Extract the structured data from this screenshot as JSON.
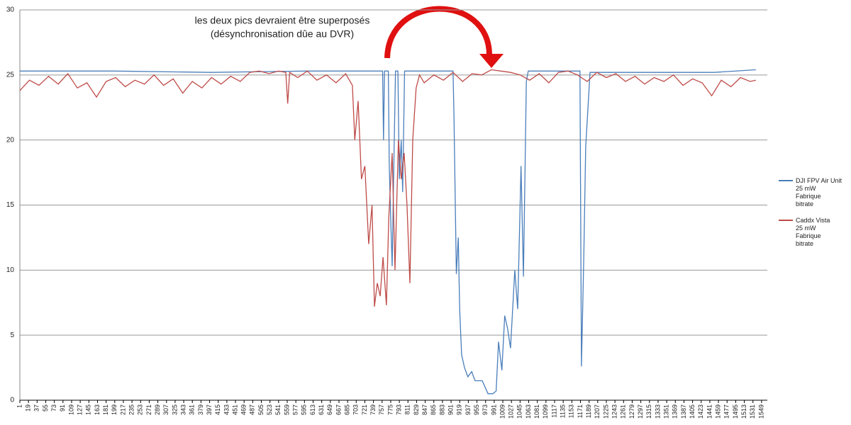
{
  "chart_data": {
    "type": "line",
    "annotation": [
      "les deux pics devraient être superposés",
      "(désynchronisation dûe au DVR)"
    ],
    "xlim": [
      1,
      1561
    ],
    "ylim": [
      0,
      30
    ],
    "yticks": [
      0,
      5,
      10,
      15,
      20,
      25,
      30
    ],
    "grid": true,
    "legend": "right",
    "xticks": [
      1,
      19,
      37,
      55,
      73,
      91,
      109,
      127,
      145,
      163,
      181,
      199,
      217,
      235,
      253,
      271,
      289,
      307,
      325,
      343,
      361,
      379,
      397,
      415,
      433,
      451,
      469,
      487,
      505,
      523,
      541,
      559,
      577,
      595,
      613,
      631,
      649,
      667,
      685,
      703,
      721,
      739,
      757,
      775,
      793,
      811,
      829,
      847,
      865,
      883,
      901,
      919,
      937,
      955,
      973,
      991,
      1009,
      1027,
      1045,
      1063,
      1081,
      1099,
      1117,
      1135,
      1153,
      1171,
      1189,
      1207,
      1225,
      1243,
      1261,
      1279,
      1297,
      1315,
      1333,
      1351,
      1369,
      1387,
      1405,
      1423,
      1441,
      1459,
      1477,
      1495,
      1513,
      1531,
      1549
    ],
    "series": [
      {
        "name": "DJI FPV Air Unit\n25 mW\n Fabrique\nbitrate",
        "color": "#4a7ebb",
        "x": [
          1,
          200,
          400,
          600,
          758,
          760,
          762,
          770,
          772,
          775,
          778,
          781,
          785,
          790,
          793,
          797,
          800,
          804,
          905,
          907,
          912,
          916,
          919,
          923,
          929,
          936,
          944,
          951,
          966,
          978,
          988,
          995,
          1000,
          1007,
          1013,
          1019,
          1025,
          1034,
          1040,
          1047,
          1052,
          1058,
          1062,
          1170,
          1173,
          1178,
          1182,
          1186,
          1191,
          1300,
          1450,
          1537
        ],
        "values": [
          25.3,
          25.3,
          25.2,
          25.3,
          25.3,
          20,
          25.3,
          25.3,
          18,
          14,
          10.3,
          17,
          25.3,
          25.3,
          17,
          20,
          16,
          25.3,
          25.3,
          22,
          9.7,
          12.5,
          7,
          3.5,
          2.5,
          1.8,
          2.2,
          1.5,
          1.5,
          0.5,
          0.5,
          0.7,
          4.5,
          2.3,
          6.5,
          5.5,
          4,
          10,
          7,
          18,
          9.5,
          24.5,
          25.3,
          25.3,
          2.6,
          11,
          19.5,
          22,
          25.2,
          25.2,
          25.2,
          25.4
        ]
      },
      {
        "name": "Caddx Vista\n25 mW\n Fabrique\nbitrate",
        "color": "#be4b48",
        "x": [
          1,
          21,
          41,
          61,
          81,
          101,
          121,
          141,
          161,
          181,
          201,
          221,
          241,
          261,
          281,
          301,
          321,
          341,
          361,
          381,
          401,
          421,
          441,
          461,
          481,
          501,
          521,
          541,
          556,
          560,
          564,
          581,
          601,
          621,
          641,
          661,
          681,
          695,
          700,
          707,
          714,
          721,
          729,
          736,
          741,
          747,
          753,
          759,
          766,
          771,
          778,
          784,
          791,
          797,
          803,
          809,
          815,
          821,
          828,
          835,
          845,
          865,
          885,
          905,
          925,
          945,
          965,
          985,
          1005,
          1025,
          1045,
          1065,
          1085,
          1105,
          1125,
          1145,
          1165,
          1185,
          1205,
          1225,
          1245,
          1265,
          1285,
          1305,
          1325,
          1345,
          1365,
          1385,
          1405,
          1425,
          1445,
          1465,
          1485,
          1505,
          1525,
          1537
        ],
        "values": [
          23.8,
          24.6,
          24.2,
          24.9,
          24.3,
          25.1,
          24.0,
          24.4,
          23.3,
          24.5,
          24.8,
          24.1,
          24.6,
          24.3,
          25.0,
          24.2,
          24.7,
          23.6,
          24.5,
          24.0,
          24.8,
          24.3,
          24.9,
          24.5,
          25.2,
          25.3,
          25.1,
          25.3,
          25.2,
          22.8,
          25.2,
          24.8,
          25.3,
          24.6,
          25.0,
          24.4,
          25.1,
          24.2,
          20,
          23,
          17,
          18,
          12,
          15,
          7.2,
          9,
          8,
          11,
          7.3,
          14,
          19,
          10,
          20,
          17,
          19,
          15,
          9,
          20,
          24,
          25,
          24.4,
          25.0,
          24.6,
          25.2,
          24.5,
          25.1,
          25.0,
          25.4,
          25.3,
          25.2,
          25.0,
          24.6,
          25.1,
          24.4,
          25.2,
          25.3,
          25.0,
          24.5,
          25.2,
          24.8,
          25.1,
          24.5,
          24.9,
          24.3,
          24.8,
          24.5,
          25.0,
          24.2,
          24.7,
          24.4,
          23.4,
          24.6,
          24.1,
          24.8,
          24.5,
          24.6
        ]
      }
    ]
  }
}
